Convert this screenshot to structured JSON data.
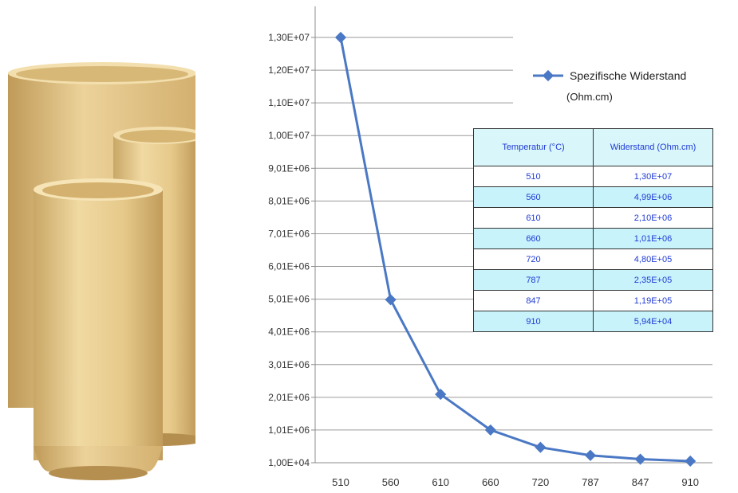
{
  "photo": {
    "description_icon": "ceramic-tubes-photo",
    "colors": {
      "body": "#e9cf92",
      "shadow": "#c9a766",
      "highlight": "#f7e3b2",
      "inner": "#d8b877"
    }
  },
  "chart_data": {
    "type": "line",
    "title": "",
    "xlabel": "",
    "ylabel": "",
    "categories": [
      "510",
      "560",
      "610",
      "660",
      "720",
      "787",
      "847",
      "910"
    ],
    "series": [
      {
        "name": "Spezifische Widerstand",
        "values": [
          13000000,
          4990000,
          2100000,
          1010000,
          480000,
          235000,
          119000,
          59400
        ],
        "color": "#4a78c4"
      }
    ],
    "ylim": [
      10000,
      13000000
    ],
    "y_tick_labels": [
      "1,00E+04",
      "1,01E+06",
      "2,01E+06",
      "3,01E+06",
      "4,01E+06",
      "5,01E+06",
      "6,01E+06",
      "7,01E+06",
      "8,01E+06",
      "9,01E+06",
      "1,00E+07",
      "1,10E+07",
      "1,20E+07",
      "1,30E+07"
    ],
    "grid": true,
    "legend": {
      "position": "top-right",
      "label": "Spezifische Widerstand",
      "unit": "(Ohm.cm)"
    },
    "table": {
      "headers": [
        "Temperatur (°C)",
        "Widerstand (Ohm.cm)"
      ],
      "rows": [
        [
          "510",
          "1,30E+07"
        ],
        [
          "560",
          "4,99E+06"
        ],
        [
          "610",
          "2,10E+06"
        ],
        [
          "660",
          "1,01E+06"
        ],
        [
          "720",
          "4,80E+05"
        ],
        [
          "787",
          "2,35E+05"
        ],
        [
          "847",
          "1,19E+05"
        ],
        [
          "910",
          "5,94E+04"
        ]
      ]
    }
  }
}
